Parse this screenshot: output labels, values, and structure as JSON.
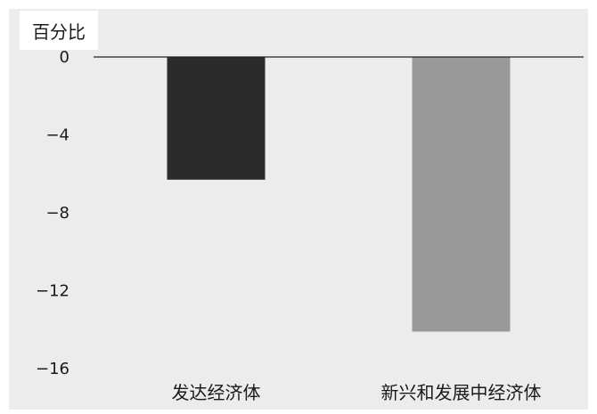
{
  "chart_data": {
    "type": "bar",
    "ylabel": "百分比",
    "xlabel": "",
    "title": "",
    "categories": [
      "发达经济体",
      "新兴和发展中经济体"
    ],
    "values": [
      -6.3,
      -14.1
    ],
    "colors": [
      "#2b2b2b",
      "#999999"
    ],
    "ylim": [
      -16,
      0
    ],
    "yticks": [
      0,
      -4,
      -8,
      -12,
      -16
    ],
    "ytick_labels": [
      "0",
      "−4",
      "−8",
      "−12",
      "−16"
    ],
    "grid": false,
    "legend": "none"
  },
  "colors": {
    "panel_background": "#ececec",
    "zero_line": "#222222"
  }
}
